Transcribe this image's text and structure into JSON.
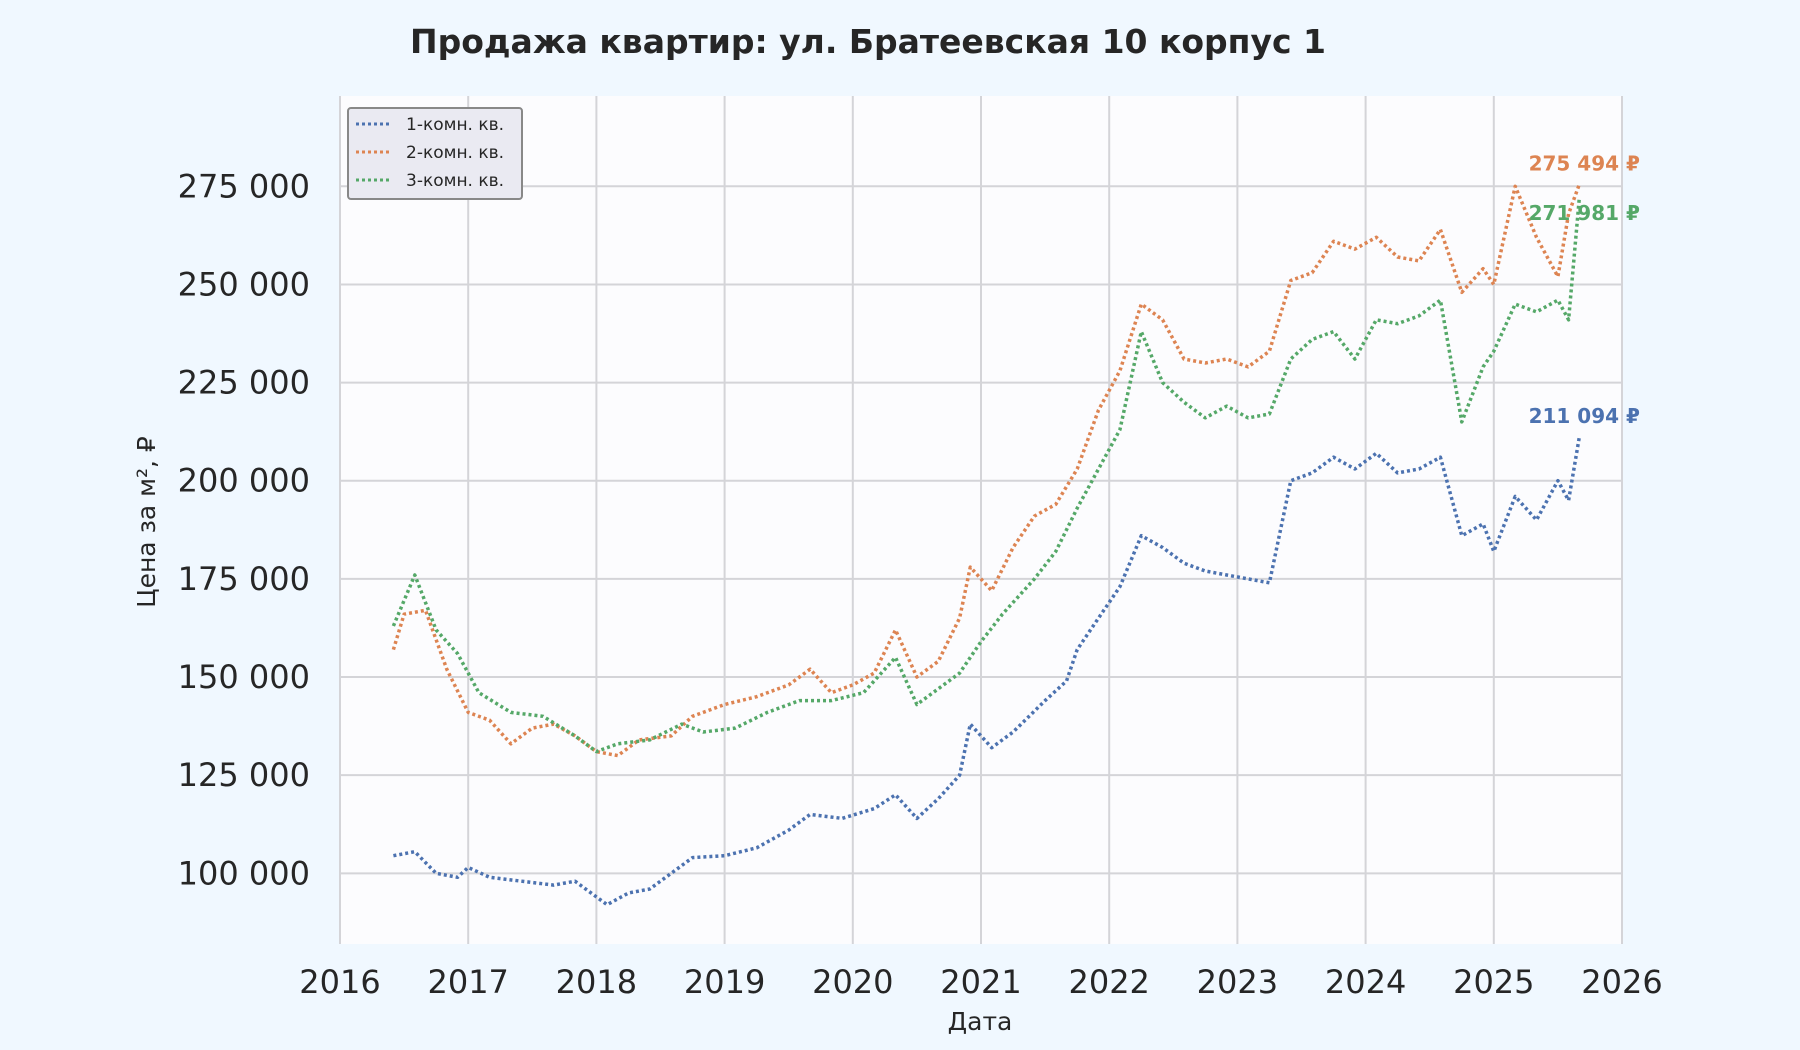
{
  "chart_data": {
    "type": "line",
    "title": "Продажа квартир: ул. Братеевская 10 корпус 1",
    "xlabel": "Дата",
    "ylabel": "Цена за м², ₽",
    "xlim": [
      2016,
      2026
    ],
    "ylim": [
      82000,
      298000
    ],
    "x_ticks": [
      "2016",
      "2017",
      "2018",
      "2019",
      "2020",
      "2021",
      "2022",
      "2023",
      "2024",
      "2025",
      "2026"
    ],
    "y_ticks": [
      100000,
      125000,
      150000,
      175000,
      200000,
      225000,
      250000,
      275000
    ],
    "y_tick_labels": [
      "100 000",
      "125 000",
      "150 000",
      "175 000",
      "200 000",
      "225 000",
      "250 000",
      "275 000"
    ],
    "grid": true,
    "legend_position": "top-left",
    "line_style": "dotted",
    "series": [
      {
        "name": "1-комн. кв.",
        "color": "#4c72b0",
        "end_label": "211 094 ₽",
        "points": [
          [
            "2016-06",
            104500
          ],
          [
            "2016-08",
            105500
          ],
          [
            "2016-10",
            100000
          ],
          [
            "2016-12",
            99000
          ],
          [
            "2017-01",
            101500
          ],
          [
            "2017-03",
            99000
          ],
          [
            "2017-06",
            98000
          ],
          [
            "2017-09",
            97000
          ],
          [
            "2017-11",
            98000
          ],
          [
            "2018-01",
            94000
          ],
          [
            "2018-02",
            92000
          ],
          [
            "2018-04",
            95000
          ],
          [
            "2018-06",
            96000
          ],
          [
            "2018-08",
            100000
          ],
          [
            "2018-10",
            104000
          ],
          [
            "2019-01",
            104500
          ],
          [
            "2019-04",
            106500
          ],
          [
            "2019-07",
            111000
          ],
          [
            "2019-09",
            115000
          ],
          [
            "2019-12",
            114000
          ],
          [
            "2020-03",
            116500
          ],
          [
            "2020-05",
            120000
          ],
          [
            "2020-07",
            114000
          ],
          [
            "2020-09",
            119000
          ],
          [
            "2020-11",
            125000
          ],
          [
            "2020-12",
            138000
          ],
          [
            "2021-02",
            132000
          ],
          [
            "2021-04",
            136000
          ],
          [
            "2021-07",
            144000
          ],
          [
            "2021-09",
            149000
          ],
          [
            "2021-10",
            157000
          ],
          [
            "2021-12",
            165000
          ],
          [
            "2022-02",
            173000
          ],
          [
            "2022-04",
            186000
          ],
          [
            "2022-06",
            183000
          ],
          [
            "2022-08",
            179000
          ],
          [
            "2022-10",
            177000
          ],
          [
            "2022-12",
            176000
          ],
          [
            "2023-02",
            175000
          ],
          [
            "2023-04",
            174000
          ],
          [
            "2023-06",
            200000
          ],
          [
            "2023-08",
            202000
          ],
          [
            "2023-10",
            206000
          ],
          [
            "2023-12",
            203000
          ],
          [
            "2024-02",
            207000
          ],
          [
            "2024-04",
            202000
          ],
          [
            "2024-06",
            203000
          ],
          [
            "2024-08",
            206000
          ],
          [
            "2024-10",
            186000
          ],
          [
            "2024-12",
            189000
          ],
          [
            "2025-01",
            182000
          ],
          [
            "2025-03",
            196000
          ],
          [
            "2025-05",
            190000
          ],
          [
            "2025-07",
            200000
          ],
          [
            "2025-08",
            195000
          ],
          [
            "2025-09",
            211094
          ]
        ]
      },
      {
        "name": "2-комн. кв.",
        "color": "#dd8452",
        "end_label": "275 494 ₽",
        "points": [
          [
            "2016-06",
            157000
          ],
          [
            "2016-07",
            166000
          ],
          [
            "2016-09",
            167000
          ],
          [
            "2016-11",
            152000
          ],
          [
            "2017-01",
            141000
          ],
          [
            "2017-03",
            139000
          ],
          [
            "2017-05",
            133000
          ],
          [
            "2017-07",
            137000
          ],
          [
            "2017-09",
            138000
          ],
          [
            "2017-11",
            135000
          ],
          [
            "2018-01",
            131000
          ],
          [
            "2018-03",
            130000
          ],
          [
            "2018-05",
            134000
          ],
          [
            "2018-08",
            135000
          ],
          [
            "2018-10",
            140000
          ],
          [
            "2019-01",
            143000
          ],
          [
            "2019-04",
            145000
          ],
          [
            "2019-07",
            148000
          ],
          [
            "2019-09",
            152000
          ],
          [
            "2019-11",
            146000
          ],
          [
            "2020-01",
            148000
          ],
          [
            "2020-03",
            151000
          ],
          [
            "2020-05",
            162000
          ],
          [
            "2020-07",
            150000
          ],
          [
            "2020-09",
            154000
          ],
          [
            "2020-11",
            165000
          ],
          [
            "2020-12",
            178000
          ],
          [
            "2021-02",
            172000
          ],
          [
            "2021-04",
            183000
          ],
          [
            "2021-06",
            191000
          ],
          [
            "2021-08",
            194000
          ],
          [
            "2021-10",
            203000
          ],
          [
            "2021-12",
            218000
          ],
          [
            "2022-02",
            228000
          ],
          [
            "2022-04",
            245000
          ],
          [
            "2022-06",
            241000
          ],
          [
            "2022-08",
            231000
          ],
          [
            "2022-10",
            230000
          ],
          [
            "2022-12",
            231000
          ],
          [
            "2023-02",
            229000
          ],
          [
            "2023-04",
            233000
          ],
          [
            "2023-06",
            251000
          ],
          [
            "2023-08",
            253000
          ],
          [
            "2023-10",
            261000
          ],
          [
            "2023-12",
            259000
          ],
          [
            "2024-02",
            262000
          ],
          [
            "2024-04",
            257000
          ],
          [
            "2024-06",
            256000
          ],
          [
            "2024-08",
            264000
          ],
          [
            "2024-10",
            248000
          ],
          [
            "2024-12",
            254000
          ],
          [
            "2025-01",
            250000
          ],
          [
            "2025-03",
            275000
          ],
          [
            "2025-05",
            262000
          ],
          [
            "2025-07",
            252000
          ],
          [
            "2025-08",
            268000
          ],
          [
            "2025-09",
            275494
          ]
        ]
      },
      {
        "name": "3-комн. кв.",
        "color": "#55a868",
        "end_label": "271 981 ₽",
        "points": [
          [
            "2016-06",
            163000
          ],
          [
            "2016-08",
            176000
          ],
          [
            "2016-10",
            162000
          ],
          [
            "2016-12",
            156000
          ],
          [
            "2017-02",
            146000
          ],
          [
            "2017-05",
            141000
          ],
          [
            "2017-08",
            140000
          ],
          [
            "2017-11",
            135000
          ],
          [
            "2018-01",
            131000
          ],
          [
            "2018-03",
            133000
          ],
          [
            "2018-06",
            134000
          ],
          [
            "2018-09",
            138000
          ],
          [
            "2018-11",
            136000
          ],
          [
            "2019-02",
            137000
          ],
          [
            "2019-05",
            141000
          ],
          [
            "2019-08",
            144000
          ],
          [
            "2019-11",
            144000
          ],
          [
            "2020-02",
            146000
          ],
          [
            "2020-05",
            155000
          ],
          [
            "2020-07",
            143000
          ],
          [
            "2020-09",
            147000
          ],
          [
            "2020-11",
            151000
          ],
          [
            "2021-01",
            159000
          ],
          [
            "2021-03",
            166000
          ],
          [
            "2021-06",
            175000
          ],
          [
            "2021-08",
            182000
          ],
          [
            "2021-10",
            193000
          ],
          [
            "2021-12",
            203000
          ],
          [
            "2022-02",
            213000
          ],
          [
            "2022-04",
            238000
          ],
          [
            "2022-06",
            225000
          ],
          [
            "2022-08",
            220000
          ],
          [
            "2022-10",
            216000
          ],
          [
            "2022-12",
            219000
          ],
          [
            "2023-02",
            216000
          ],
          [
            "2023-04",
            217000
          ],
          [
            "2023-06",
            231000
          ],
          [
            "2023-08",
            236000
          ],
          [
            "2023-10",
            238000
          ],
          [
            "2023-12",
            231000
          ],
          [
            "2024-02",
            241000
          ],
          [
            "2024-04",
            240000
          ],
          [
            "2024-06",
            242000
          ],
          [
            "2024-08",
            246000
          ],
          [
            "2024-10",
            215000
          ],
          [
            "2024-12",
            229000
          ],
          [
            "2025-01",
            233000
          ],
          [
            "2025-03",
            245000
          ],
          [
            "2025-05",
            243000
          ],
          [
            "2025-07",
            246000
          ],
          [
            "2025-08",
            241000
          ],
          [
            "2025-09",
            271981
          ]
        ]
      }
    ]
  }
}
